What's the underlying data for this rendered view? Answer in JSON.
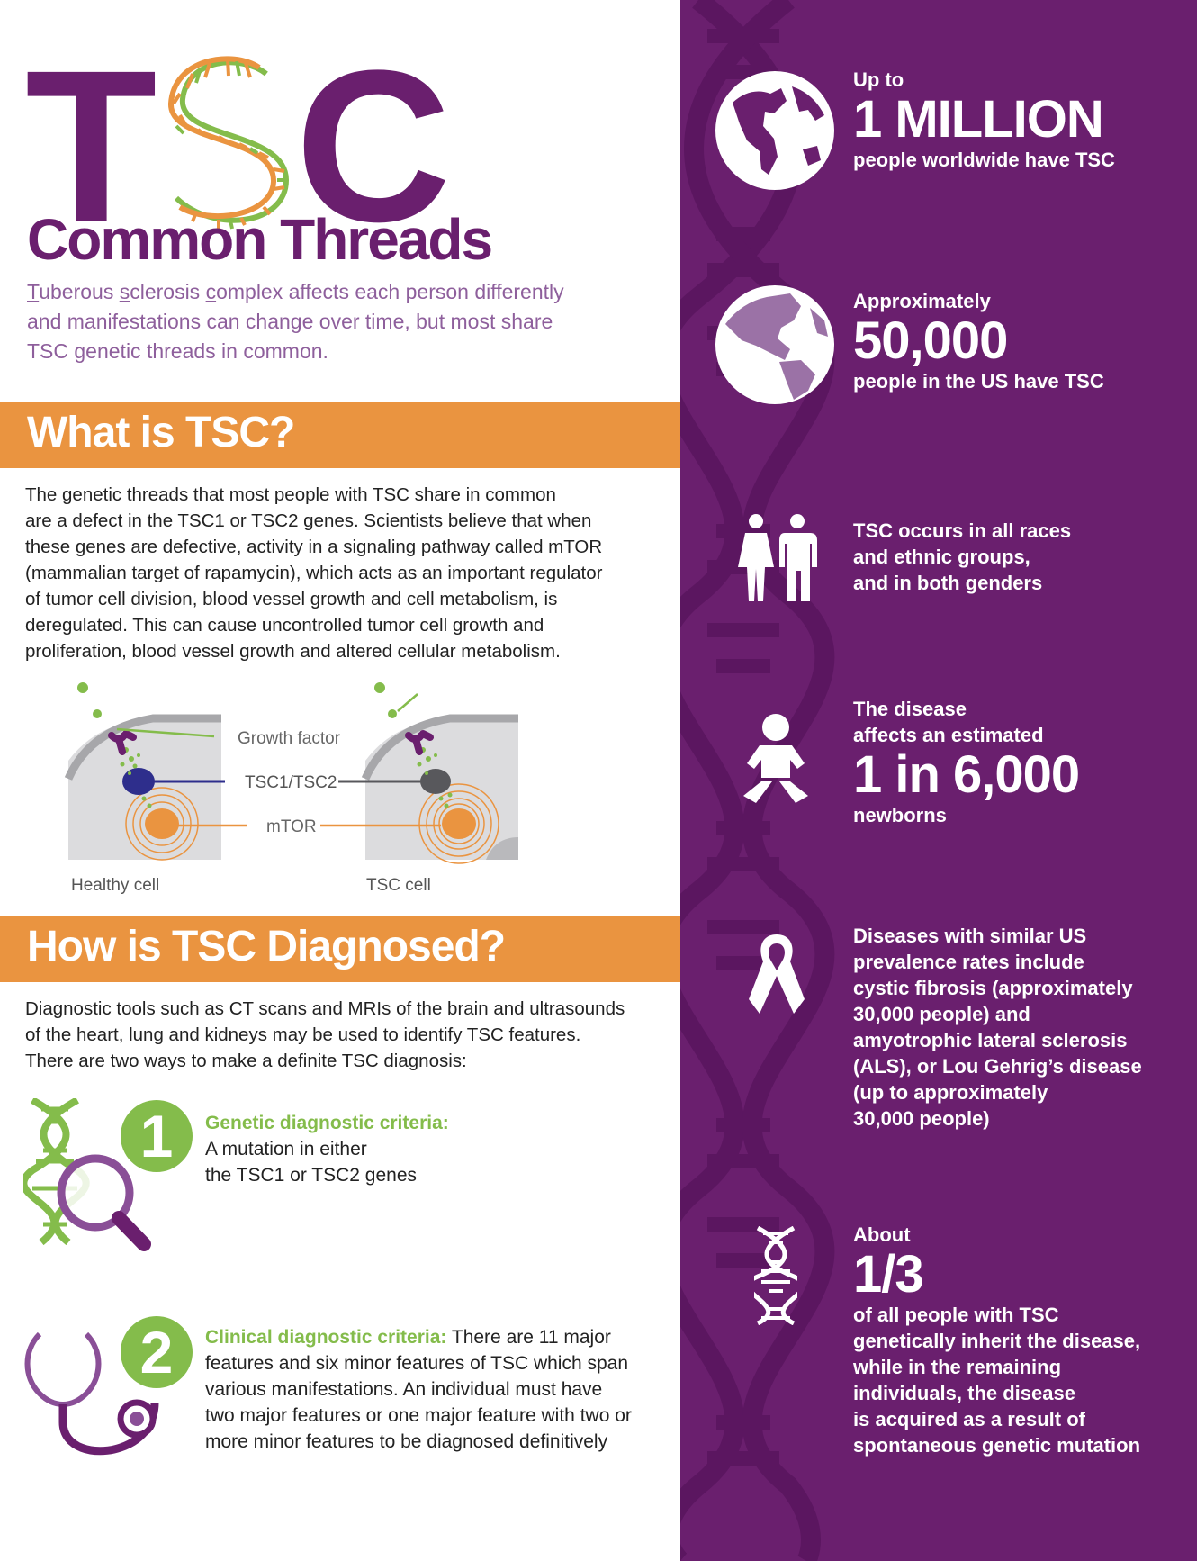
{
  "header": {
    "title_letters": [
      "T",
      "S",
      "C"
    ],
    "subtitle": "Common Threads",
    "intro_t": "T",
    "intro_part1": "uberous ",
    "intro_s": "s",
    "intro_part2": "clerosis ",
    "intro_c": "c",
    "intro_part3": "omplex affects each person differently",
    "intro_line2": "and manifestations can change over time, but most share",
    "intro_line3": "TSC genetic threads in common."
  },
  "what": {
    "heading": "What is TSC?",
    "lines": [
      "The genetic threads that most people with TSC share in common",
      "are a defect in the TSC1 or TSC2 genes. Scientists believe that when",
      "these genes are defective, activity in a signaling pathway called mTOR",
      "(mammalian target of rapamycin), which acts as an important regulator",
      "of tumor cell division, blood vessel growth and cell metabolism, is",
      "deregulated. This can cause uncontrolled tumor cell growth and",
      "proliferation, blood vessel growth and altered cellular metabolism."
    ],
    "diagram": {
      "growth_factor": "Growth factor",
      "tsc12": "TSC1/TSC2",
      "mtor": "mTOR",
      "healthy_cell": "Healthy cell",
      "tsc_cell": "TSC cell"
    }
  },
  "diagnosed": {
    "heading": "How is TSC Diagnosed?",
    "lines": [
      "Diagnostic tools such as CT scans and MRIs of the brain and ultrasounds",
      "of the heart, lung and kidneys may be used to identify TSC features.",
      "There are two ways to make a definite TSC diagnosis:"
    ],
    "criteria1": {
      "number": "1",
      "title": "Genetic diagnostic criteria:",
      "line1": "A mutation in either",
      "line2": "the TSC1 or TSC2 genes"
    },
    "criteria2": {
      "number": "2",
      "title": "Clinical diagnostic criteria:",
      "line1": "There are 11 major",
      "line2": "features and six minor features of TSC which span",
      "line3": "various manifestations. An individual must have",
      "line4": "two major features or one major feature with two or",
      "line5": "more minor features to be diagnosed definitively"
    }
  },
  "stats": {
    "s1": {
      "pre": "Up to",
      "big": "1 MILLION",
      "post": "people worldwide have TSC"
    },
    "s2": {
      "pre": "Approximately",
      "big": "50,000",
      "post": "people in the US have TSC"
    },
    "s3": {
      "lines": [
        "TSC occurs in all races",
        "and ethnic groups,",
        "and in both genders"
      ]
    },
    "s4": {
      "pre1": "The disease",
      "pre2": "affects an estimated",
      "big": "1 in 6,000",
      "post": "newborns"
    },
    "s5": {
      "lines": [
        "Diseases with similar US",
        "prevalence rates include",
        "cystic fibrosis (approximately",
        "30,000 people) and",
        "amyotrophic lateral sclerosis",
        "(ALS), or Lou Gehrig’s disease",
        "(up to approximately",
        "30,000 people)"
      ]
    },
    "s6": {
      "pre": "About",
      "big": "1/3",
      "lines": [
        "of all people with TSC",
        "genetically inherit the disease,",
        "while in the remaining",
        "individuals, the disease",
        "is acquired as a result of",
        "spontaneous genetic mutation"
      ]
    }
  },
  "colors": {
    "purple": "#6a1f6e",
    "orange": "#ea9440",
    "green": "#84bc4b",
    "light_purple": "#8e5f9c"
  }
}
